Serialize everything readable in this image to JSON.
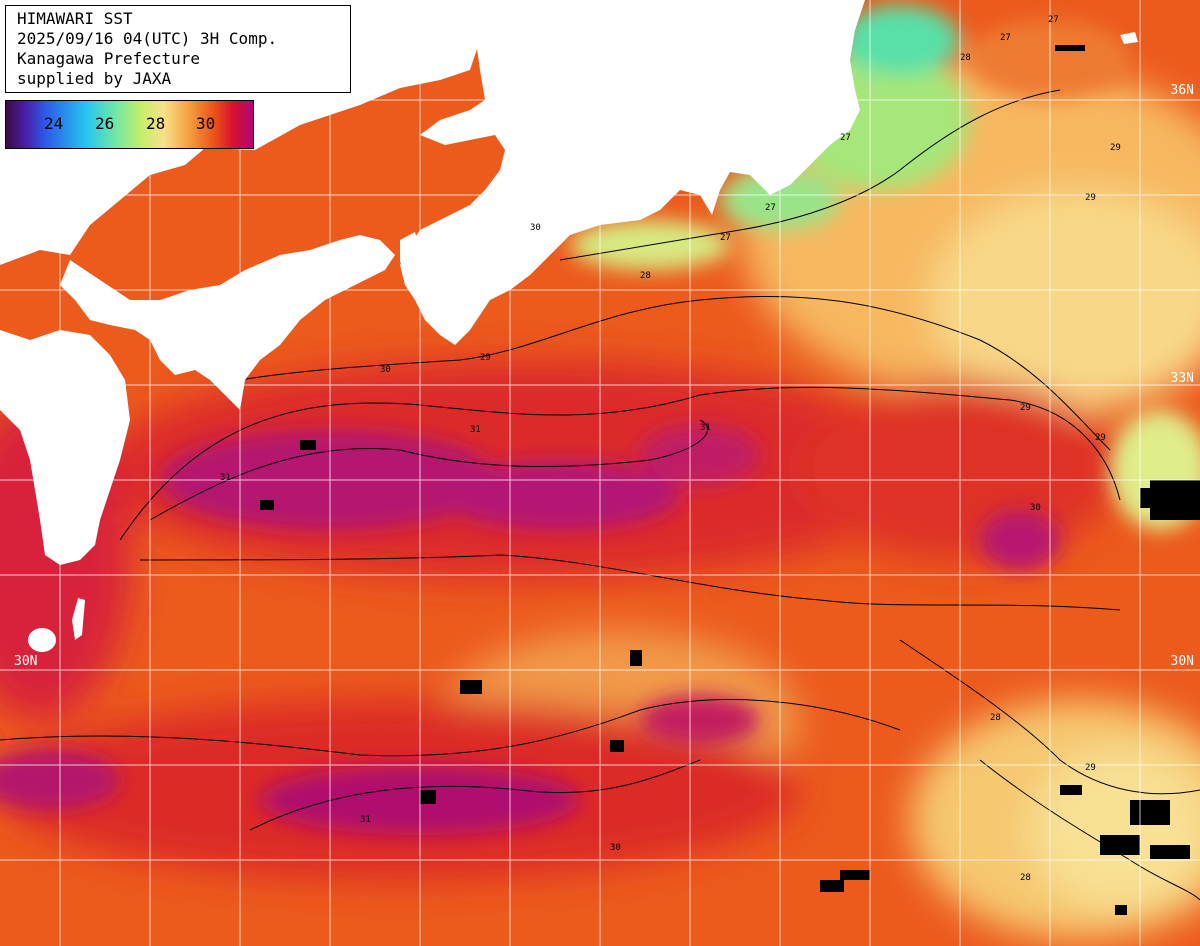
{
  "info": {
    "lines": [
      "HIMAWARI SST",
      "2025/09/16 04(UTC) 3H Comp.",
      "Kanagawa Prefecture",
      "supplied by JAXA"
    ]
  },
  "legend": {
    "ticks": [
      "24",
      "26",
      "28",
      "30"
    ]
  },
  "lat_labels": {
    "n36": "36N",
    "n33": "33N",
    "n30_left": "30N",
    "n30_right": "30N"
  },
  "contour_labels": [
    "27",
    "28",
    "29",
    "30",
    "31"
  ],
  "colors": {
    "land": "#ffffff",
    "sst_31": "#b8106e",
    "sst_30": "#de2626",
    "sst_29": "#ee5a1c",
    "sst_28": "#f5a24a",
    "sst_27": "#f8dc8a",
    "sst_26": "#b6ec7a",
    "sst_25": "#55e6b0",
    "missing": "#000000",
    "grid": "#ffffff"
  }
}
